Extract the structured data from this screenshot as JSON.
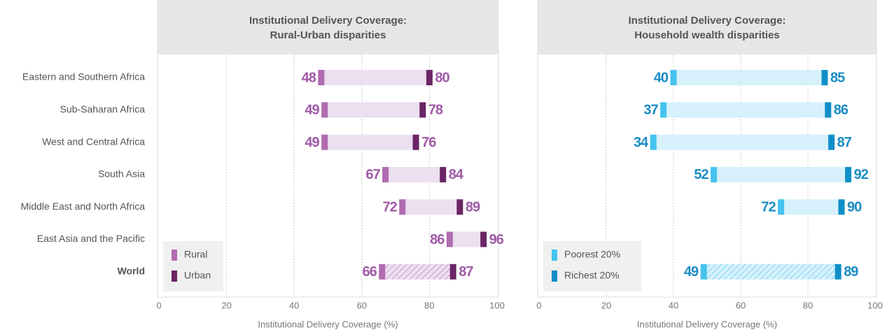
{
  "chart_data": [
    {
      "type": "dumbbell",
      "title": [
        "Institutional Delivery Coverage:",
        "Rural-Urban disparities"
      ],
      "categories": [
        "Eastern and Southern Africa",
        "Sub-Saharan Africa",
        "West and Central Africa",
        "South Asia",
        "Middle East and North Africa",
        "East Asia and the Pacific",
        "World"
      ],
      "series": [
        {
          "name": "Rural",
          "color": "#b06cb0",
          "values": [
            48,
            49,
            49,
            67,
            72,
            86,
            66
          ]
        },
        {
          "name": "Urban",
          "color": "#6b2566",
          "values": [
            80,
            78,
            76,
            84,
            89,
            96,
            87
          ]
        }
      ],
      "band_color": "#ecdff0",
      "label_color": "#a05aa6",
      "xlim": [
        0,
        100
      ],
      "xticks": [
        0,
        20,
        40,
        60,
        80,
        100
      ],
      "xlabel": "Institutional Delivery Coverage (%)",
      "grid": true,
      "legend": "lower left"
    },
    {
      "type": "dumbbell",
      "title": [
        "Institutional Delivery Coverage:",
        "Household wealth disparities"
      ],
      "series": [
        {
          "name": "Poorest 20%",
          "color": "#45c3ee",
          "values": [
            40,
            37,
            34,
            52,
            72,
            null,
            49
          ]
        },
        {
          "name": "Richest 20%",
          "color": "#0f8fc8",
          "values": [
            85,
            86,
            87,
            92,
            90,
            null,
            89
          ]
        }
      ],
      "band_color": "#d6f1fb",
      "label_color": "#1a8cc4",
      "xlim": [
        0,
        100
      ],
      "xticks": [
        0,
        20,
        40,
        60,
        80,
        100
      ],
      "xlabel": "Institutional Delivery Coverage (%)",
      "grid": true,
      "legend": "lower left"
    }
  ]
}
